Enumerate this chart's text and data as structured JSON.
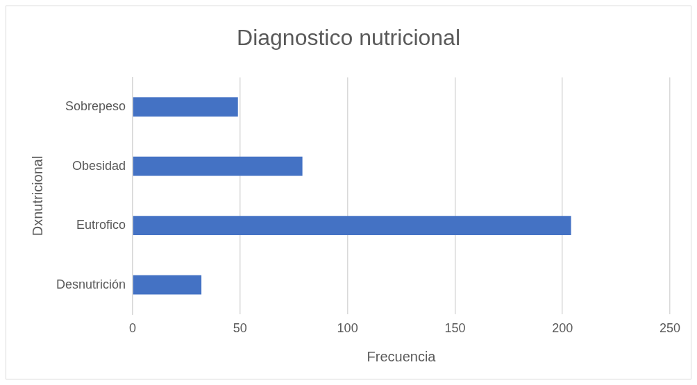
{
  "chart_data": {
    "type": "bar",
    "orientation": "horizontal",
    "title": "Diagnostico nutricional",
    "xlabel": "Frecuencia",
    "ylabel": "Dxnutricional",
    "categories": [
      "Sobrepeso",
      "Obesidad",
      "Eutrofico",
      "Desnutrición"
    ],
    "values": [
      49,
      79,
      204,
      32
    ],
    "color": "#4472c4",
    "xlim": [
      0,
      250
    ],
    "xticks": [
      0,
      50,
      100,
      150,
      200,
      250
    ],
    "grid": "x",
    "legend": false
  }
}
